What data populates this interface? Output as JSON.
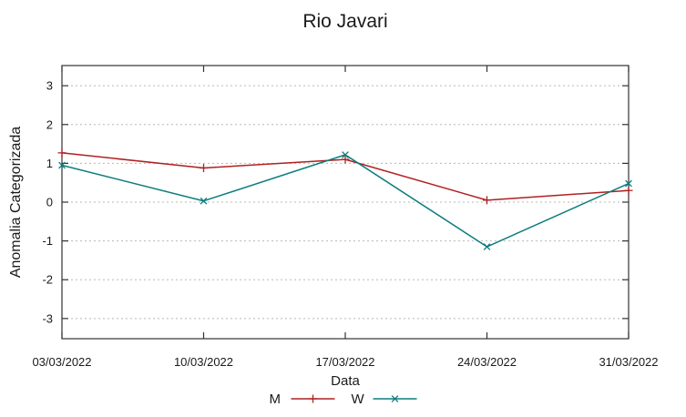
{
  "figure": {
    "background": "#ffffff"
  },
  "chart_data": {
    "type": "line",
    "title": "Rio Javari",
    "xlabel": "Data",
    "ylabel": "Anomalia Categorizada",
    "categories": [
      "03/03/2022",
      "10/03/2022",
      "17/03/2022",
      "24/03/2022",
      "31/03/2022"
    ],
    "series": [
      {
        "name": "M",
        "color": "#b02020",
        "marker": "plus",
        "values": [
          1.27,
          0.88,
          1.1,
          0.05,
          0.3
        ]
      },
      {
        "name": "W",
        "color": "#0e7d7d",
        "marker": "cross",
        "values": [
          0.95,
          0.03,
          1.22,
          -1.15,
          0.48
        ]
      }
    ],
    "yticks": [
      -3,
      -2,
      -1,
      0,
      1,
      2,
      3
    ],
    "ylim": [
      -3.52,
      3.52
    ],
    "grid": "horizontal-dotted",
    "legend_position": "bottom-center",
    "axis_color": "#333333",
    "grid_color": "#b8b8b8",
    "text_color": "#1a1a1a"
  }
}
